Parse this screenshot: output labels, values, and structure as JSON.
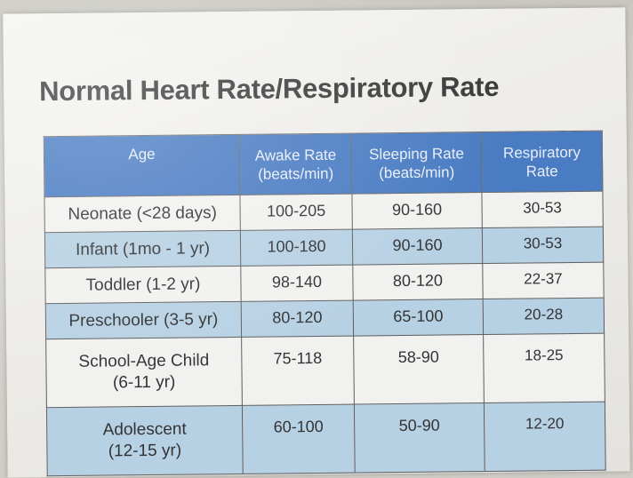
{
  "title": "Normal Heart Rate/Respiratory Rate",
  "headers": [
    [
      "Age"
    ],
    [
      "Awake Rate",
      "(beats/min)"
    ],
    [
      "Sleeping Rate",
      "(beats/min)"
    ],
    [
      "Respiratory",
      "Rate"
    ]
  ],
  "rows": [
    {
      "age": [
        "Neonate (<28 days)"
      ],
      "awake": "100-205",
      "sleeping": "90-160",
      "respiratory": "30-53"
    },
    {
      "age": [
        "Infant (1mo - 1 yr)"
      ],
      "awake": "100-180",
      "sleeping": "90-160",
      "respiratory": "30-53"
    },
    {
      "age": [
        "Toddler (1-2 yr)"
      ],
      "awake": "98-140",
      "sleeping": "80-120",
      "respiratory": "22-37"
    },
    {
      "age": [
        "Preschooler (3-5 yr)"
      ],
      "awake": "80-120",
      "sleeping": "65-100",
      "respiratory": "20-28"
    },
    {
      "age": [
        "School-Age Child",
        "(6-11 yr)"
      ],
      "awake": "75-118",
      "sleeping": "58-90",
      "respiratory": "18-25"
    },
    {
      "age": [
        "Adolescent",
        "(12-15 yr)"
      ],
      "awake": "60-100",
      "sleeping": "50-90",
      "respiratory": "12-20"
    }
  ],
  "colors": {
    "header": "#4a7cc3",
    "shaded_row": "#b7d1e4",
    "white_row": "#f1f1ef"
  }
}
